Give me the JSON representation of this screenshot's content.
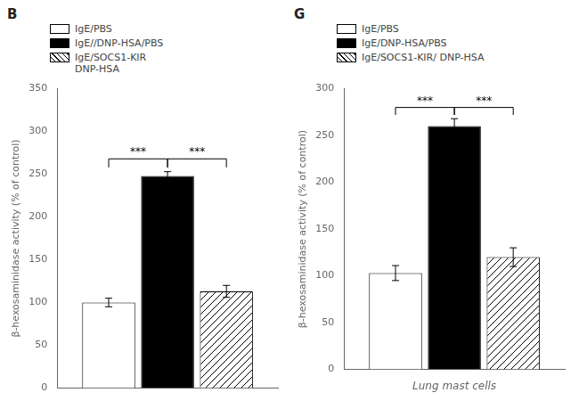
{
  "chart_data": [
    {
      "type": "bar",
      "title": "B",
      "categories": [
        null
      ],
      "series": [
        {
          "name": "IgE/PBS",
          "color": "#ffffff",
          "values": [
            100
          ],
          "errors": [
            5
          ]
        },
        {
          "name": "IgE//DNP-HSA/PBS",
          "color": "#000000",
          "values": [
            248
          ],
          "errors": [
            5
          ]
        },
        {
          "name": "IgE/SOCS1-KIR\nDNP-HSA",
          "color": "#ffffff",
          "values": [
            113
          ],
          "errors": [
            7
          ]
        }
      ],
      "y_label": "β-hexosaminidase activity (% of control)",
      "ylim": [
        0,
        350
      ],
      "yticks": [
        0,
        50,
        100,
        150,
        200,
        250,
        300,
        350
      ],
      "grid": false,
      "legend": "upper left",
      "tick_labels": "y",
      "annotations": [
        {
          "text": "***",
          "between": [
            0,
            1
          ],
          "y": [
            258,
            268
          ]
        },
        {
          "text": "***",
          "between": [
            1,
            2
          ],
          "y": [
            258,
            268
          ]
        }
      ]
    },
    {
      "type": "bar",
      "title": "G",
      "categories": [
        null
      ],
      "series": [
        {
          "name": "IgE/PBS",
          "color": "#ffffff",
          "values": [
            103
          ],
          "errors": [
            8
          ]
        },
        {
          "name": "IgE/DNP-HSA/PBS",
          "color": "#000000",
          "values": [
            260
          ],
          "errors": [
            8
          ]
        },
        {
          "name": "IgE/SOCS1-KIR/ DNP-HSA",
          "color": "#ffffff",
          "values": [
            120
          ],
          "errors": [
            10
          ]
        }
      ],
      "y_label": "β-hexosaminidase activity (% of control)",
      "x_label": "Lung mast cells",
      "ylim": [
        0,
        300
      ],
      "yticks": [
        0,
        50,
        100,
        150,
        200,
        250,
        300
      ],
      "grid": false,
      "legend": "upper left",
      "tick_labels": "y",
      "annotations": [
        {
          "text": "***",
          "between": [
            0,
            1
          ],
          "y": [
            272,
            280
          ]
        },
        {
          "text": "***",
          "between": [
            1,
            2
          ],
          "y": [
            272,
            280
          ]
        }
      ]
    }
  ]
}
